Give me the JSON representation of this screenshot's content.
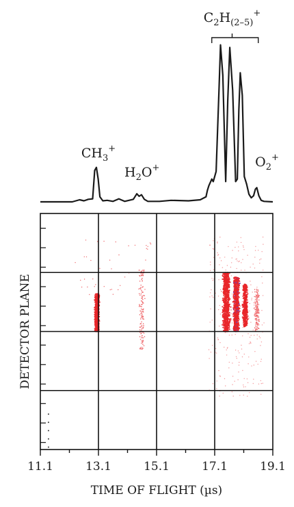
{
  "chart_data": [
    {
      "type": "line",
      "title": "",
      "xlabel": "",
      "ylabel": "",
      "xlim": [
        11.1,
        19.1
      ],
      "grid": false,
      "annotations": [
        {
          "base": "CH",
          "sub": "3",
          "sup": "+",
          "x": 13.1
        },
        {
          "base": "H",
          "sub": "2",
          "tail": "O",
          "sup": "+",
          "x": 14.6
        },
        {
          "base": "C",
          "sub": "2",
          "tail": "H",
          "sub2": "(2–5)",
          "sup": "+",
          "x": 17.7,
          "bracket": [
            17.0,
            18.6
          ]
        },
        {
          "base": "O",
          "sub": "2",
          "sup": "+",
          "x": 18.9
        }
      ],
      "series": [
        {
          "x": [
            11.1,
            12.2,
            12.45,
            12.6,
            12.75,
            12.9,
            12.97,
            13.03,
            13.09,
            13.15,
            13.25,
            13.4,
            13.6,
            13.8,
            14.0,
            14.3,
            14.42,
            14.5,
            14.58,
            14.68,
            14.8,
            15.2,
            15.6,
            16.2,
            16.6,
            16.8,
            16.85,
            16.9,
            17.0,
            17.05,
            17.15,
            17.25,
            17.3,
            17.38,
            17.48,
            17.55,
            17.62,
            17.72,
            17.82,
            17.88,
            17.93,
            17.98,
            18.05,
            18.12,
            18.2,
            18.28,
            18.36,
            18.44,
            18.5,
            18.55,
            18.62,
            18.7,
            18.8,
            19.1
          ],
          "y": [
            0,
            0,
            0.4,
            0.2,
            0.5,
            0.6,
            6.2,
            6.8,
            4.5,
            1.0,
            0.2,
            0.3,
            0.1,
            0.6,
            0.1,
            0.5,
            1.6,
            1.1,
            1.4,
            0.5,
            0.1,
            0.1,
            0.3,
            0.2,
            0.4,
            1.0,
            2.3,
            3.2,
            4.5,
            4.0,
            6.0,
            22.5,
            31.0,
            25.0,
            4.0,
            20.0,
            30.5,
            22.0,
            4.0,
            4.5,
            18.0,
            25.5,
            21.0,
            5.0,
            3.5,
            1.5,
            0.8,
            1.2,
            2.5,
            2.8,
            1.2,
            0.3,
            0.1,
            0
          ]
        }
      ]
    },
    {
      "type": "scatter",
      "title": "",
      "xlabel": "TIME OF FLIGHT (µs)",
      "ylabel": "DETECTOR PLANE",
      "xlim": [
        11.1,
        19.1
      ],
      "ylim": [
        0,
        10
      ],
      "xticks": [
        "11.1",
        "13.1",
        "15.1",
        "17.1",
        "19.1"
      ],
      "grid": true,
      "gridlines_x": [
        13.1,
        15.1,
        17.1
      ],
      "gridlines_y": [
        2.5,
        5.0,
        7.5
      ],
      "colors": {
        "dense": "#e8262a",
        "sparse": "#ef6b6e",
        "core": "#7b3fae",
        "grid": "#111111"
      },
      "clusters": [
        {
          "x_center": 13.05,
          "x_spread": 0.07,
          "y_range": [
            5.0,
            6.6
          ],
          "density": "high"
        },
        {
          "x_center": 14.6,
          "x_spread": 0.1,
          "y_range": [
            4.2,
            7.6
          ],
          "density": "low"
        },
        {
          "x_center": 17.5,
          "x_spread": 0.12,
          "y_range": [
            5.0,
            7.5
          ],
          "density": "high"
        },
        {
          "x_center": 17.85,
          "x_spread": 0.1,
          "y_range": [
            5.0,
            7.3
          ],
          "density": "high"
        },
        {
          "x_center": 18.15,
          "x_spread": 0.08,
          "y_range": [
            5.2,
            7.0
          ],
          "density": "medium"
        },
        {
          "x_center": 18.55,
          "x_spread": 0.08,
          "y_range": [
            5.0,
            6.8
          ],
          "density": "low"
        }
      ]
    }
  ]
}
